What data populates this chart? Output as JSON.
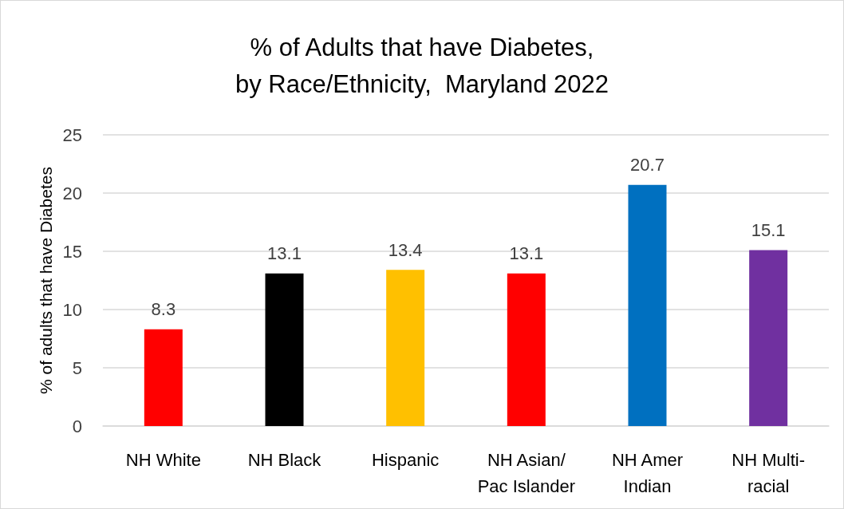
{
  "chart_data": {
    "type": "bar",
    "title": "% of Adults that have Diabetes,\nby Race/Ethnicity,  Maryland 2022",
    "ylabel": "% of adults that have Diabetes",
    "categories": [
      "NH White",
      "NH Black",
      "Hispanic",
      "NH Asian/\nPac Islander",
      "NH Amer\nIndian",
      "NH Multi-\nracial"
    ],
    "values": [
      8.3,
      13.1,
      13.4,
      13.1,
      20.7,
      15.1
    ],
    "colors": [
      "#ff0000",
      "#000000",
      "#ffc000",
      "#ff0000",
      "#0070c0",
      "#7030a0"
    ],
    "ylim": [
      0,
      25
    ],
    "yticks": [
      0,
      5,
      10,
      15,
      20,
      25
    ],
    "grid": "y",
    "data_labels": true
  }
}
